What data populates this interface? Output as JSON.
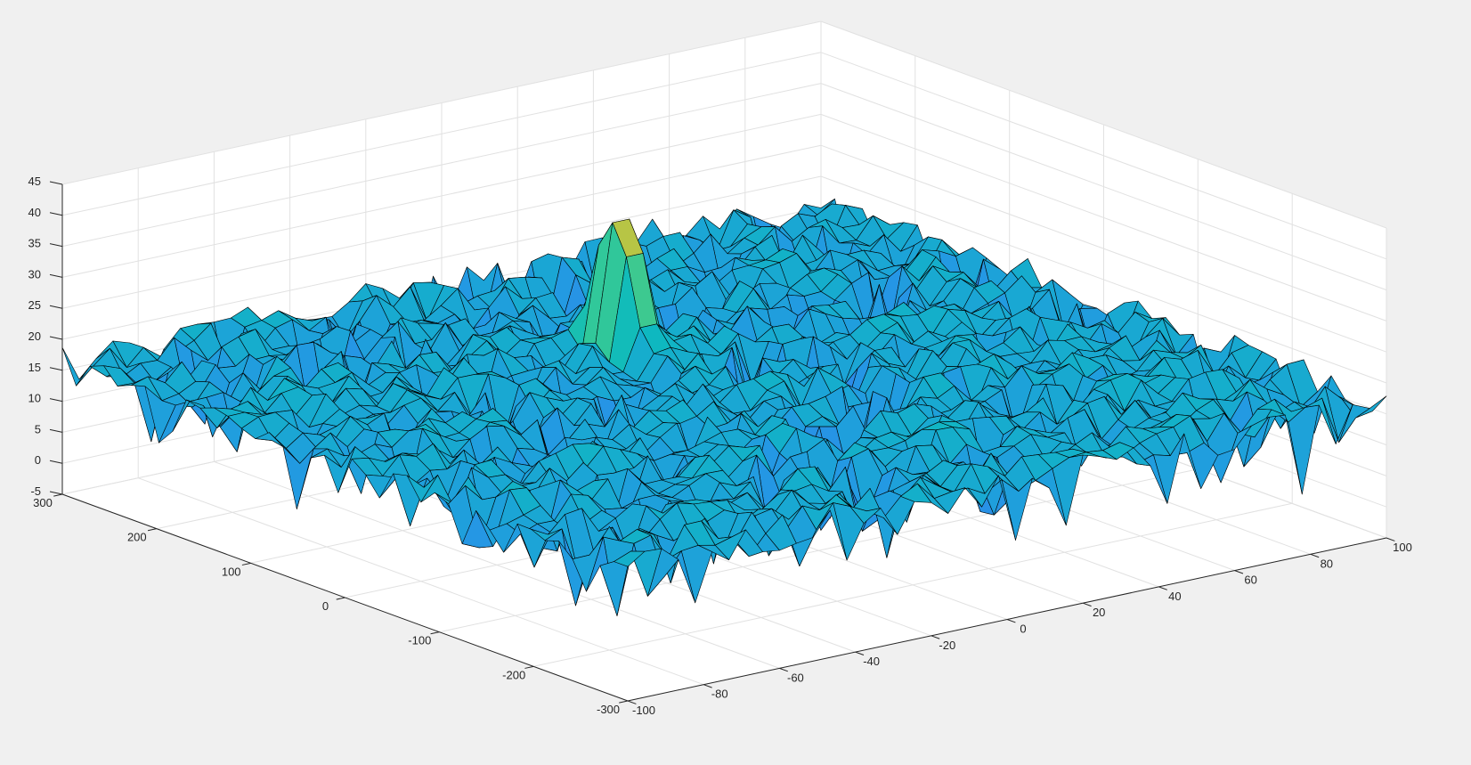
{
  "chart_data": {
    "type": "surface",
    "title": "",
    "xlabel": "",
    "ylabel": "",
    "zlabel": "",
    "xlim": [
      -100,
      100
    ],
    "ylim": [
      -300,
      300
    ],
    "zlim": [
      -5,
      45
    ],
    "x_ticks": [
      "-100",
      "-80",
      "-60",
      "-40",
      "-20",
      "0",
      "20",
      "40",
      "60",
      "80",
      "100"
    ],
    "y_ticks": [
      "-300",
      "-200",
      "-100",
      "0",
      "100",
      "200",
      "300"
    ],
    "z_ticks": [
      "-5",
      "0",
      "5",
      "10",
      "15",
      "20",
      "25",
      "30",
      "35",
      "40",
      "45"
    ],
    "grid": true,
    "colormap": "parula",
    "edge_color": "#000000",
    "noise_floor_range": [
      -5,
      20
    ],
    "peak": {
      "x": 0,
      "y": 110,
      "z": 40
    },
    "colors": {
      "figure_background": "#f0f0f0",
      "axes_background": "#ffffff",
      "grid": "#e1e1e1",
      "axis_line": "#262626"
    }
  }
}
